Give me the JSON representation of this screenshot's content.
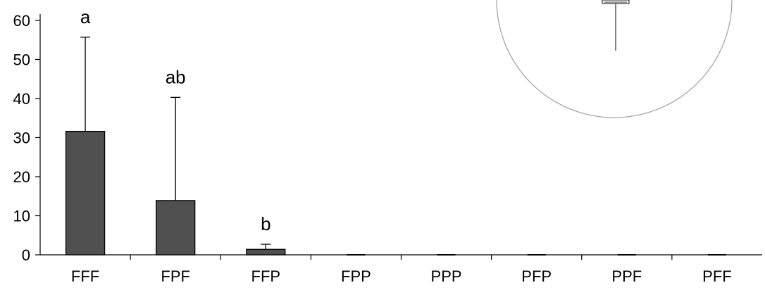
{
  "chart_data": {
    "type": "bar",
    "title": "",
    "xlabel": "",
    "ylabel": "",
    "categories": [
      "FFF",
      "FPF",
      "FFP",
      "FPP",
      "PPP",
      "PFP",
      "PPF",
      "PFF"
    ],
    "values": [
      31.6,
      13.9,
      1.4,
      0,
      0,
      0,
      0,
      0
    ],
    "error_upper": [
      55.7,
      40.3,
      2.7,
      0,
      0,
      0,
      0,
      0
    ],
    "significance_letters": [
      "a",
      "ab",
      "b",
      "",
      "",
      "",
      "",
      ""
    ],
    "ylim": [
      0,
      60
    ],
    "yticks": [
      0,
      10,
      20,
      30,
      40,
      50,
      60
    ],
    "grid": false,
    "bar_color": "#505050",
    "inset": "partially visible circular inset with a small box-and-whisker glyph, top-right corner"
  }
}
